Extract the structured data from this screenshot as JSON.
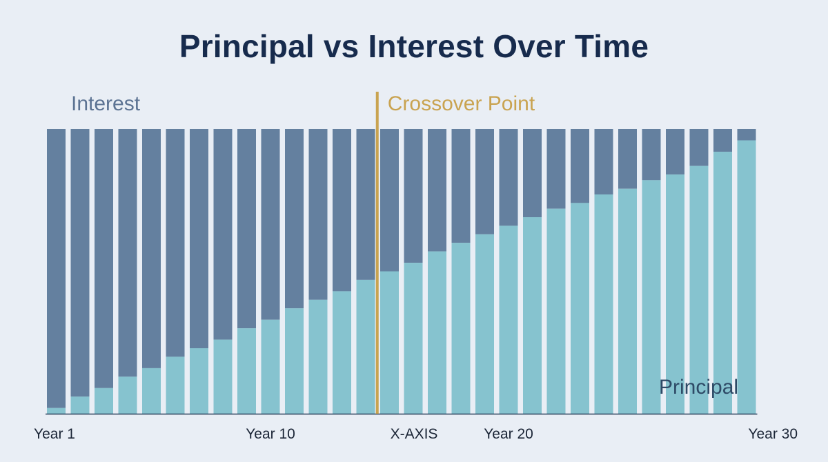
{
  "title": "Principal vs Interest Over Time",
  "colors": {
    "background": "#e9eef5",
    "interest": "#64809f",
    "principal": "#86c3cf",
    "crossover": "#c9a350",
    "axis": "#2a3f5a",
    "title": "#172b4d"
  },
  "chart_data": {
    "type": "bar",
    "stacked": true,
    "x_tick_labels": [
      "Year 1",
      "Year 10",
      "X-AXIS",
      "Year 20",
      "Year 30"
    ],
    "categories": [
      1,
      2,
      3,
      4,
      5,
      6,
      7,
      8,
      9,
      10,
      11,
      12,
      13,
      14,
      15,
      16,
      17,
      18,
      19,
      20,
      21,
      22,
      23,
      24,
      25,
      26,
      27,
      28,
      29,
      30
    ],
    "series": [
      {
        "name": "Principal",
        "values": [
          2,
          6,
          9,
          13,
          16,
          20,
          23,
          26,
          30,
          33,
          37,
          40,
          43,
          47,
          50,
          53,
          57,
          60,
          63,
          66,
          69,
          72,
          74,
          77,
          79,
          82,
          84,
          87,
          92,
          96
        ]
      },
      {
        "name": "Interest",
        "values": [
          98,
          94,
          91,
          87,
          84,
          80,
          77,
          74,
          70,
          67,
          63,
          60,
          57,
          53,
          50,
          47,
          43,
          40,
          37,
          34,
          31,
          28,
          26,
          23,
          21,
          18,
          16,
          13,
          8,
          4
        ]
      }
    ],
    "annotations": [
      {
        "label": "Crossover Point",
        "x": 14.5
      }
    ],
    "ylim": [
      0,
      100
    ],
    "grid": false,
    "legend": "inline labels"
  }
}
